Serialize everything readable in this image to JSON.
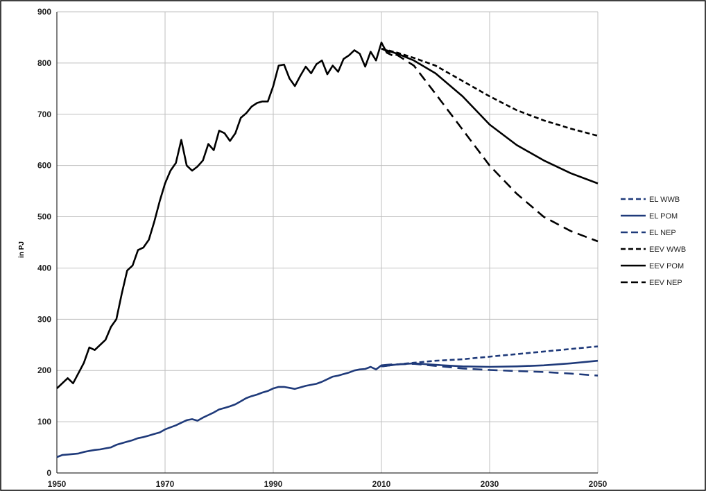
{
  "chart_data": {
    "type": "line",
    "title": "",
    "xlabel": "",
    "ylabel": "in PJ",
    "xlim": [
      1950,
      2050
    ],
    "ylim": [
      0,
      900
    ],
    "x_ticks": [
      1950,
      1970,
      1990,
      2010,
      2030,
      2050
    ],
    "y_ticks": [
      0,
      100,
      200,
      300,
      400,
      500,
      600,
      700,
      800,
      900
    ],
    "grid": true,
    "legend_position": "right",
    "series": [
      {
        "name": "EL WWB",
        "color": "#1f3a7a",
        "dash": "short",
        "points": [
          [
            2010,
            208
          ],
          [
            2013,
            212
          ],
          [
            2016,
            215
          ],
          [
            2020,
            219
          ],
          [
            2025,
            222
          ],
          [
            2030,
            227
          ],
          [
            2035,
            232
          ],
          [
            2040,
            237
          ],
          [
            2045,
            242
          ],
          [
            2050,
            247
          ]
        ]
      },
      {
        "name": "EL POM",
        "color": "#1f3a7a",
        "dash": "solid",
        "points": [
          [
            2010,
            208
          ],
          [
            2013,
            212
          ],
          [
            2016,
            214
          ],
          [
            2020,
            211
          ],
          [
            2025,
            208
          ],
          [
            2030,
            207
          ],
          [
            2035,
            208
          ],
          [
            2040,
            210
          ],
          [
            2045,
            214
          ],
          [
            2050,
            219
          ]
        ]
      },
      {
        "name": "EL NEP",
        "color": "#1f3a7a",
        "dash": "long",
        "points": [
          [
            2010,
            208
          ],
          [
            2013,
            212
          ],
          [
            2016,
            213
          ],
          [
            2020,
            209
          ],
          [
            2025,
            204
          ],
          [
            2030,
            201
          ],
          [
            2035,
            199
          ],
          [
            2040,
            197
          ],
          [
            2045,
            194
          ],
          [
            2050,
            190
          ]
        ]
      },
      {
        "name": "EEV WWB",
        "color": "#000000",
        "dash": "short",
        "points": [
          [
            2010,
            828
          ],
          [
            2013,
            820
          ],
          [
            2016,
            810
          ],
          [
            2020,
            795
          ],
          [
            2025,
            765
          ],
          [
            2030,
            735
          ],
          [
            2035,
            708
          ],
          [
            2040,
            688
          ],
          [
            2045,
            672
          ],
          [
            2050,
            658
          ]
        ]
      },
      {
        "name": "EEV POM",
        "color": "#000000",
        "dash": "solid",
        "points": [
          [
            2010,
            828
          ],
          [
            2013,
            818
          ],
          [
            2016,
            805
          ],
          [
            2020,
            780
          ],
          [
            2025,
            735
          ],
          [
            2030,
            680
          ],
          [
            2035,
            640
          ],
          [
            2040,
            610
          ],
          [
            2045,
            585
          ],
          [
            2050,
            565
          ]
        ]
      },
      {
        "name": "EEV NEP",
        "color": "#000000",
        "dash": "long",
        "points": [
          [
            2010,
            828
          ],
          [
            2013,
            815
          ],
          [
            2016,
            795
          ],
          [
            2020,
            740
          ],
          [
            2025,
            670
          ],
          [
            2030,
            600
          ],
          [
            2035,
            545
          ],
          [
            2040,
            500
          ],
          [
            2045,
            472
          ],
          [
            2050,
            452
          ]
        ]
      },
      {
        "name": "",
        "color": "#000000",
        "dash": "solid",
        "points": [
          [
            1950,
            165
          ],
          [
            1952,
            185
          ],
          [
            1953,
            175
          ],
          [
            1955,
            215
          ],
          [
            1956,
            245
          ],
          [
            1957,
            240
          ],
          [
            1959,
            260
          ],
          [
            1960,
            285
          ],
          [
            1961,
            300
          ],
          [
            1962,
            350
          ],
          [
            1963,
            395
          ],
          [
            1964,
            405
          ],
          [
            1965,
            435
          ],
          [
            1966,
            440
          ],
          [
            1967,
            455
          ],
          [
            1968,
            490
          ],
          [
            1969,
            530
          ],
          [
            1970,
            565
          ],
          [
            1971,
            590
          ],
          [
            1972,
            605
          ],
          [
            1973,
            650
          ],
          [
            1974,
            600
          ],
          [
            1975,
            590
          ],
          [
            1976,
            598
          ],
          [
            1977,
            610
          ],
          [
            1978,
            642
          ],
          [
            1979,
            630
          ],
          [
            1980,
            668
          ],
          [
            1981,
            663
          ],
          [
            1982,
            648
          ],
          [
            1983,
            663
          ],
          [
            1984,
            693
          ],
          [
            1985,
            702
          ],
          [
            1986,
            715
          ],
          [
            1987,
            722
          ],
          [
            1988,
            725
          ],
          [
            1989,
            725
          ],
          [
            1990,
            755
          ],
          [
            1991,
            795
          ],
          [
            1992,
            797
          ],
          [
            1993,
            770
          ],
          [
            1994,
            755
          ],
          [
            1995,
            775
          ],
          [
            1996,
            793
          ],
          [
            1997,
            780
          ],
          [
            1998,
            798
          ],
          [
            1999,
            805
          ],
          [
            2000,
            778
          ],
          [
            2001,
            795
          ],
          [
            2002,
            783
          ],
          [
            2003,
            808
          ],
          [
            2004,
            815
          ],
          [
            2005,
            825
          ],
          [
            2006,
            818
          ],
          [
            2007,
            793
          ],
          [
            2008,
            822
          ],
          [
            2009,
            805
          ],
          [
            2010,
            840
          ],
          [
            2011,
            820
          ],
          [
            2012,
            815
          ]
        ]
      },
      {
        "name": "",
        "color": "#1f3a7a",
        "dash": "solid",
        "points": [
          [
            1950,
            31
          ],
          [
            1951,
            35
          ],
          [
            1952,
            36
          ],
          [
            1953,
            37
          ],
          [
            1954,
            38
          ],
          [
            1955,
            41
          ],
          [
            1956,
            43
          ],
          [
            1957,
            45
          ],
          [
            1958,
            46
          ],
          [
            1959,
            48
          ],
          [
            1960,
            50
          ],
          [
            1961,
            55
          ],
          [
            1962,
            58
          ],
          [
            1963,
            61
          ],
          [
            1964,
            64
          ],
          [
            1965,
            68
          ],
          [
            1966,
            70
          ],
          [
            1967,
            73
          ],
          [
            1968,
            76
          ],
          [
            1969,
            79
          ],
          [
            1970,
            85
          ],
          [
            1971,
            89
          ],
          [
            1972,
            93
          ],
          [
            1973,
            98
          ],
          [
            1974,
            103
          ],
          [
            1975,
            105
          ],
          [
            1976,
            102
          ],
          [
            1977,
            108
          ],
          [
            1978,
            113
          ],
          [
            1979,
            118
          ],
          [
            1980,
            124
          ],
          [
            1981,
            127
          ],
          [
            1982,
            130
          ],
          [
            1983,
            134
          ],
          [
            1984,
            140
          ],
          [
            1985,
            146
          ],
          [
            1986,
            150
          ],
          [
            1987,
            153
          ],
          [
            1988,
            157
          ],
          [
            1989,
            160
          ],
          [
            1990,
            165
          ],
          [
            1991,
            168
          ],
          [
            1992,
            168
          ],
          [
            1993,
            166
          ],
          [
            1994,
            164
          ],
          [
            1995,
            167
          ],
          [
            1996,
            170
          ],
          [
            1997,
            172
          ],
          [
            1998,
            174
          ],
          [
            1999,
            178
          ],
          [
            2000,
            183
          ],
          [
            2001,
            188
          ],
          [
            2002,
            190
          ],
          [
            2003,
            193
          ],
          [
            2004,
            196
          ],
          [
            2005,
            200
          ],
          [
            2006,
            202
          ],
          [
            2007,
            203
          ],
          [
            2008,
            207
          ],
          [
            2009,
            202
          ],
          [
            2010,
            210
          ],
          [
            2011,
            211
          ],
          [
            2012,
            212
          ]
        ]
      }
    ]
  }
}
